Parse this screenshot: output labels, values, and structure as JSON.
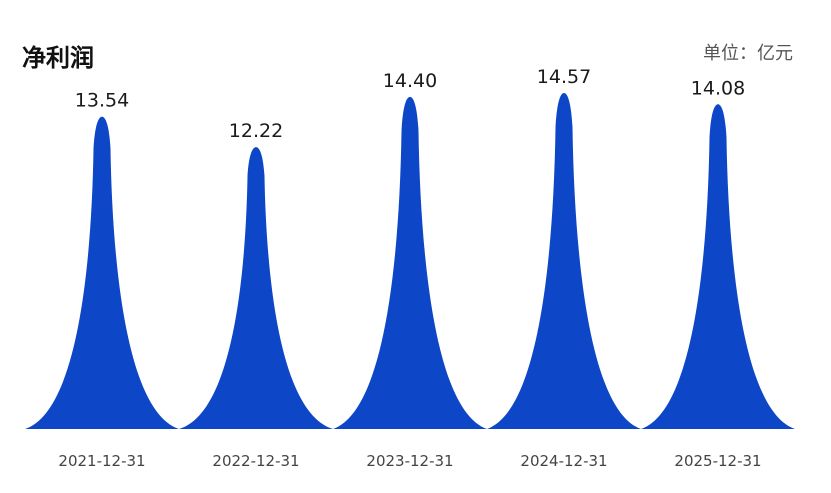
{
  "title": "净利润",
  "unit": "单位：亿元",
  "chart_data": {
    "type": "bar",
    "title": "净利润",
    "unit": "单位：亿元",
    "categories": [
      "2021-12-31",
      "2022-12-31",
      "2023-12-31",
      "2024-12-31",
      "2025-12-31"
    ],
    "values": [
      13.54,
      12.22,
      14.4,
      14.57,
      14.08
    ],
    "value_labels": [
      "13.54",
      "12.22",
      "14.40",
      "14.57",
      "14.08"
    ],
    "bar_style": "peak",
    "color": "#0d47c7",
    "ylim": [
      0,
      16
    ],
    "grid": false,
    "legend": "none"
  }
}
